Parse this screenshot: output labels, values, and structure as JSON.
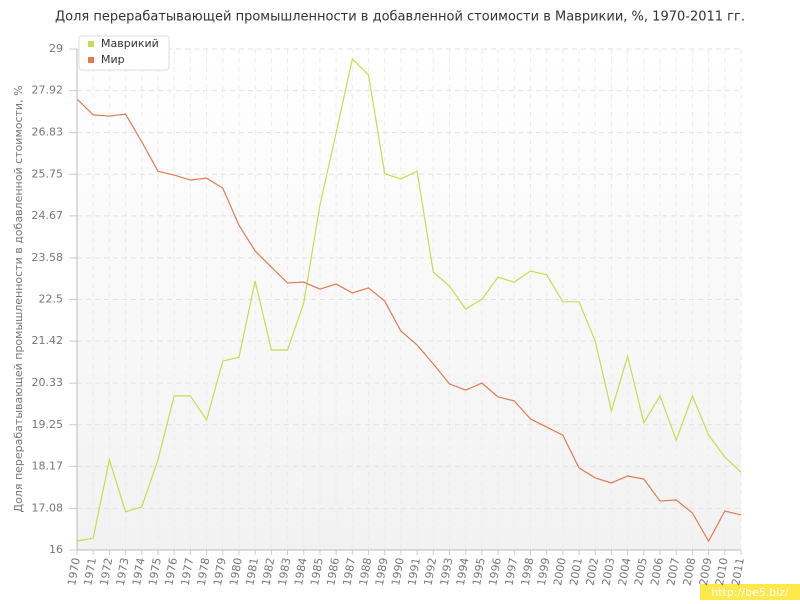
{
  "chart_data": {
    "type": "line",
    "title": "Доля перерабатывающей промышленности в добавленной стоимости в Маврикии, %, 1970-2011 гг.",
    "y_label": "Доля перерабатывающей промышленности в добавленной стоимости, %",
    "watermark": "http://be5.biz/",
    "legend": "top-left",
    "grid": true,
    "categories": [
      "1970",
      "1971",
      "1972",
      "1973",
      "1974",
      "1975",
      "1976",
      "1977",
      "1978",
      "1979",
      "1980",
      "1981",
      "1982",
      "1983",
      "1984",
      "1985",
      "1986",
      "1987",
      "1988",
      "1989",
      "1990",
      "1991",
      "1992",
      "1993",
      "1994",
      "1995",
      "1996",
      "1997",
      "1998",
      "1999",
      "2000",
      "2001",
      "2002",
      "2003",
      "2004",
      "2005",
      "2006",
      "2007",
      "2008",
      "2009",
      "2010",
      "2011"
    ],
    "series": [
      {
        "name": "Маврикий",
        "color": "#c8dc50",
        "values": [
          16.23,
          16.31,
          18.34,
          16.99,
          17.12,
          18.34,
          20.0,
          20.0,
          19.37,
          20.9,
          21.0,
          22.98,
          21.19,
          21.19,
          22.41,
          24.95,
          26.82,
          28.74,
          28.33,
          25.76,
          25.63,
          25.83,
          23.21,
          22.85,
          22.25,
          22.51,
          23.08,
          22.95,
          23.24,
          23.14,
          22.44,
          22.44,
          21.42,
          19.61,
          21.03,
          19.3,
          20.0,
          18.85,
          20.0,
          18.98,
          18.41,
          18.02
        ]
      },
      {
        "name": "Мир",
        "color": "#e07a55",
        "values": [
          27.7,
          27.29,
          27.26,
          27.31,
          26.59,
          25.83,
          25.73,
          25.6,
          25.65,
          25.39,
          24.43,
          23.76,
          23.34,
          22.93,
          22.95,
          22.77,
          22.9,
          22.67,
          22.8,
          22.46,
          21.68,
          21.32,
          20.83,
          20.31,
          20.15,
          20.33,
          19.97,
          19.87,
          19.4,
          19.19,
          18.98,
          18.13,
          17.87,
          17.74,
          17.92,
          17.84,
          17.27,
          17.3,
          16.96,
          16.23,
          17.01,
          16.91
        ]
      }
    ],
    "ylim": [
      16,
      29
    ],
    "yticks": [
      16,
      17.08,
      18.17,
      19.25,
      20.33,
      21.42,
      22.5,
      23.58,
      24.67,
      25.75,
      26.83,
      27.92,
      29
    ]
  }
}
